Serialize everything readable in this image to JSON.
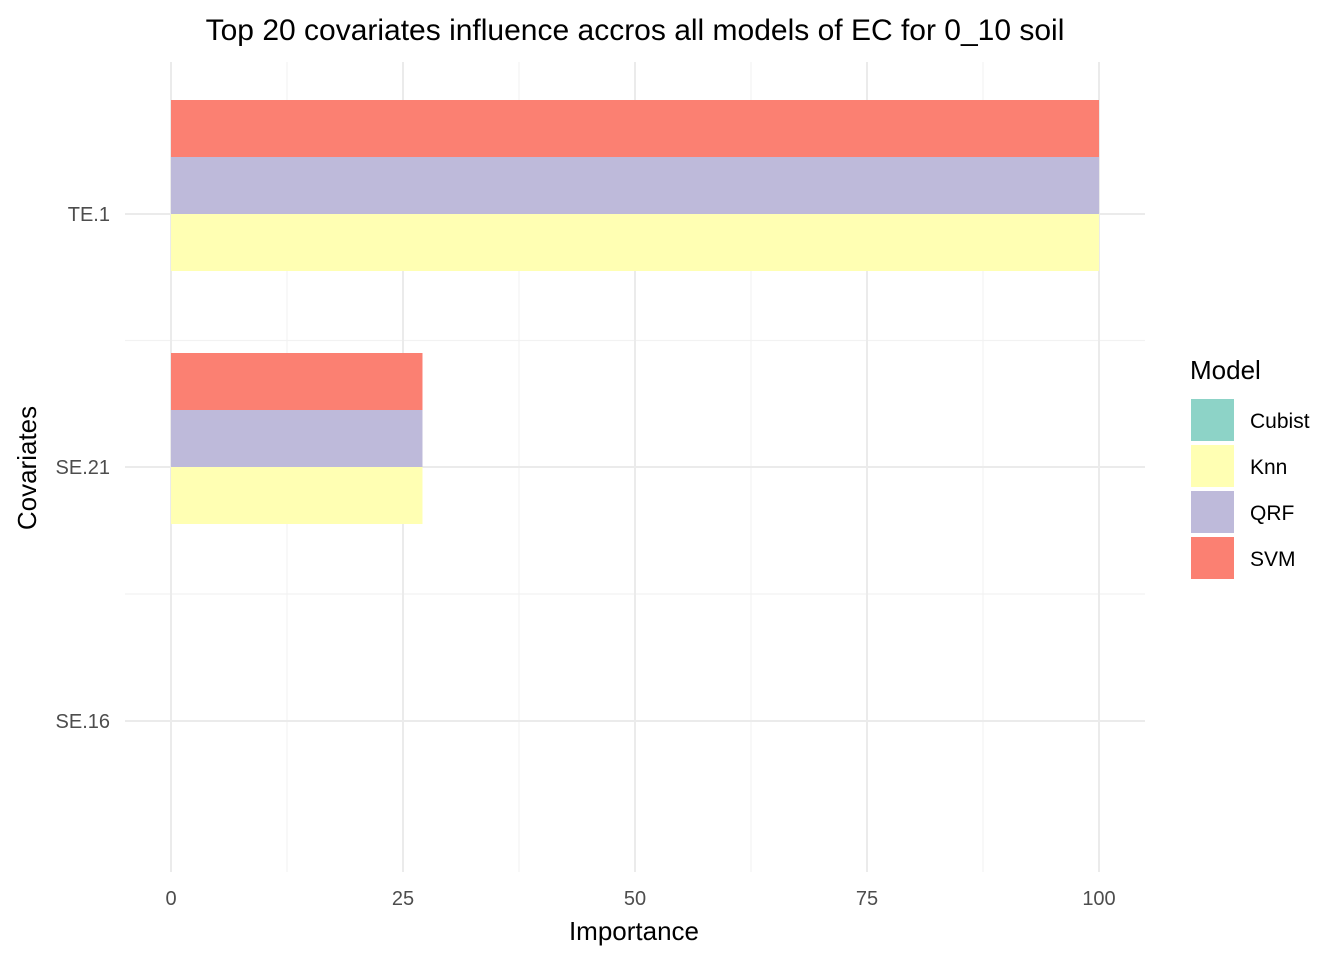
{
  "chart_data": {
    "type": "bar",
    "orientation": "horizontal",
    "title": "Top 20 covariates influence accros all models of EC for 0_10 soil",
    "xlabel": "Importance",
    "ylabel": "Covariates",
    "xlim": [
      0,
      100
    ],
    "x_ticks": [
      0,
      25,
      50,
      75,
      100
    ],
    "categories": [
      "TE.1",
      "SE.21",
      "SE.16"
    ],
    "series": [
      {
        "name": "Cubist",
        "color": "#8DD3C7",
        "values": [
          0,
          0,
          0
        ]
      },
      {
        "name": "Knn",
        "color": "#FFFFB3",
        "values": [
          100,
          27.1,
          0
        ]
      },
      {
        "name": "QRF",
        "color": "#BEBADA",
        "values": [
          100,
          27.1,
          0
        ]
      },
      {
        "name": "SVM",
        "color": "#FB8072",
        "values": [
          100,
          27.1,
          0
        ]
      }
    ],
    "legend": {
      "title": "Model",
      "position": "right"
    },
    "grid": true
  }
}
